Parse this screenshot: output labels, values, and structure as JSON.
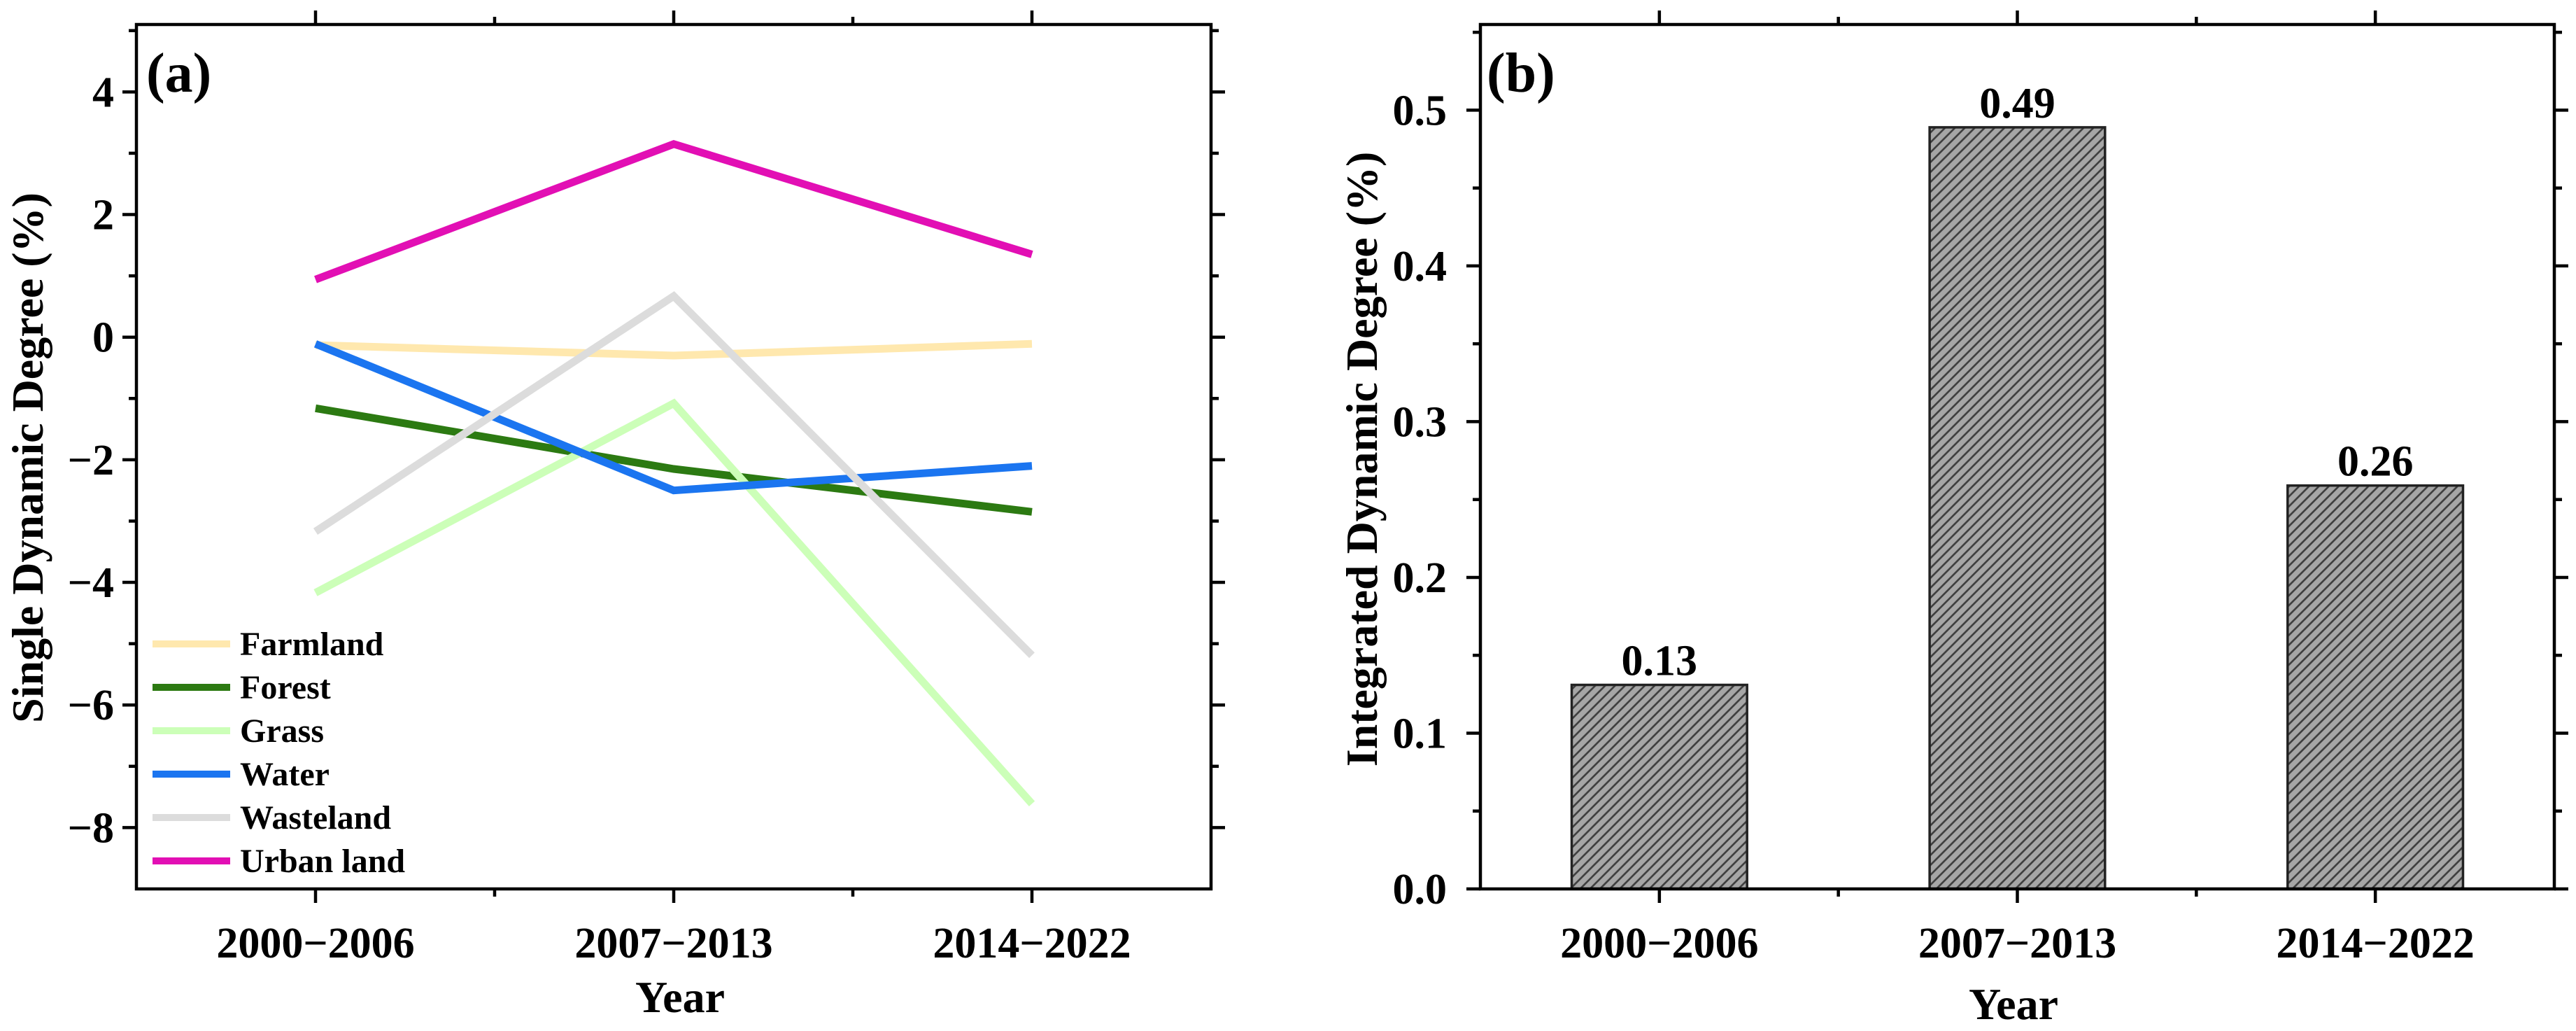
{
  "chart_data": [
    {
      "type": "line",
      "panel_label": "(a)",
      "xlabel": "Year",
      "ylabel": "Single Dynamic Degree (%)",
      "categories": [
        "2000−2006",
        "2007−2013",
        "2014−2022"
      ],
      "ylim": [
        -9,
        5.1
      ],
      "yticks": [
        4,
        2,
        0,
        -2,
        -4,
        -6,
        -8
      ],
      "ytick_labels": [
        "4",
        "2",
        "0",
        "−2",
        "−4",
        "−6",
        "−8"
      ],
      "grid": false,
      "legend": "bottom-left",
      "series": [
        {
          "name": "Farmland",
          "color": "#FFE8AE",
          "values": [
            -0.13,
            -0.3,
            -0.11
          ]
        },
        {
          "name": "Forest",
          "color": "#2C7A12",
          "values": [
            -1.16,
            -2.15,
            -2.85
          ]
        },
        {
          "name": "Grass",
          "color": "#CCFFB8",
          "values": [
            -4.17,
            -1.08,
            -7.61
          ]
        },
        {
          "name": "Water",
          "color": "#1B75F0",
          "values": [
            -0.11,
            -2.5,
            -2.1
          ]
        },
        {
          "name": "Wasteland",
          "color": "#DCDCDC",
          "values": [
            -3.17,
            0.67,
            -5.19
          ]
        },
        {
          "name": "Urban land",
          "color": "#E20FB4",
          "values": [
            0.94,
            3.15,
            1.35
          ]
        }
      ]
    },
    {
      "type": "bar",
      "panel_label": "(b)",
      "xlabel": "Year",
      "ylabel": "Integrated Dynamic Degree (%)",
      "categories": [
        "2000−2006",
        "2007−2013",
        "2014−2022"
      ],
      "values": [
        0.131,
        0.489,
        0.259
      ],
      "data_labels": [
        "0.13",
        "0.49",
        "0.26"
      ],
      "ylim": [
        0,
        0.555
      ],
      "yticks": [
        0,
        0.1,
        0.2,
        0.3,
        0.4,
        0.5
      ],
      "ytick_labels": [
        "0.0",
        "0.1",
        "0.2",
        "0.3",
        "0.4",
        "0.5"
      ],
      "grid": false,
      "bar_color": "#A6A6A6",
      "hatch_color": "#3C3C3C",
      "edge_color": "#222222"
    }
  ]
}
